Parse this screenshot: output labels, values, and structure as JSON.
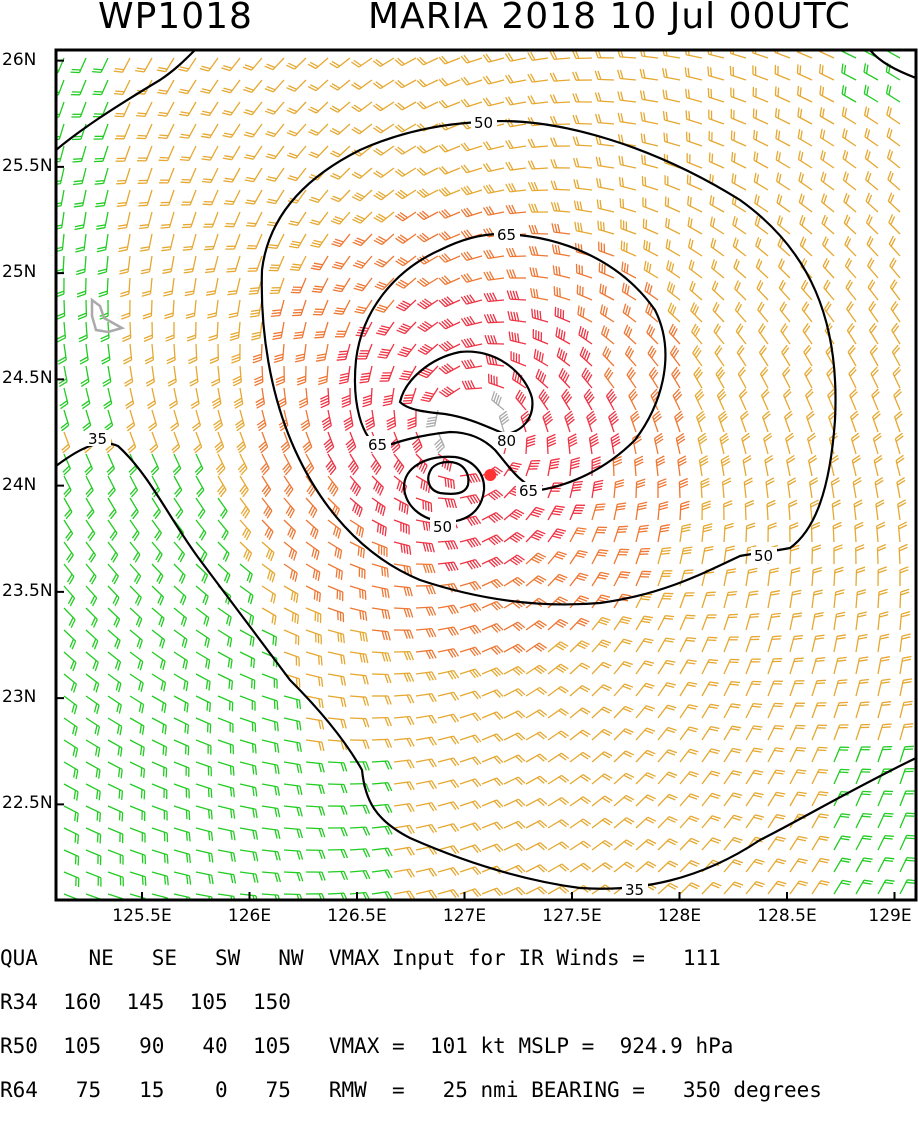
{
  "header": {
    "storm_id": "WP1018",
    "title": "MARIA 2018 10 Jul 00UTC"
  },
  "map": {
    "lon_range": [
      125.1,
      129.1
    ],
    "lat_range": [
      22.05,
      26.05
    ],
    "y_ticks": [
      "26N",
      "25.5N",
      "25N",
      "24.5N",
      "24N",
      "23.5N",
      "23N",
      "22.5N"
    ],
    "x_ticks": [
      "125.5E",
      "126E",
      "126.5E",
      "127E",
      "127.5E",
      "128E",
      "128.5E",
      "129E"
    ],
    "center": {
      "lon": 127.12,
      "lat": 24.05
    },
    "center_color": "#ff3333",
    "contour_labels": {
      "c35": "35",
      "c50": "50",
      "c65": "65",
      "c80": "80"
    },
    "colors": {
      "weak": "#22cc22",
      "moderate": "#e6a830",
      "strong": "#ee7733",
      "intense": "#ee3344",
      "calm": "#aaaaaa",
      "contour": "#000000"
    }
  },
  "stats": {
    "header": [
      "QUA",
      "NE",
      "SE",
      "SW",
      "NW"
    ],
    "rows": [
      {
        "label": "R34",
        "values": [
          "160",
          "145",
          "105",
          "150"
        ]
      },
      {
        "label": "R50",
        "values": [
          "105",
          "90",
          "40",
          "105"
        ]
      },
      {
        "label": "R64",
        "values": [
          "75",
          "15",
          "0",
          "75"
        ]
      }
    ],
    "vmax_input": "VMAX Input for IR Winds =   111",
    "vmax_line": "VMAX =  101 kt MSLP =  924.9 hPa",
    "rmw_line": "RMW  =   25 nmi BEARING =   350 degrees"
  }
}
